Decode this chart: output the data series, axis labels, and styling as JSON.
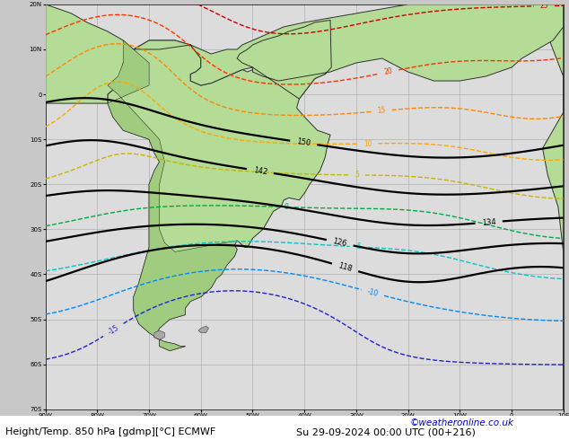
{
  "title_left": "Height/Temp. 850 hPa [gdmp][°C] ECMWF",
  "title_right": "Su 29-09-2024 00:00 UTC (00+216)",
  "watermark": "©weatheronline.co.uk",
  "bg_color": "#c8c8c8",
  "land_color": "#b4dc96",
  "land_color2": "#a0cc80",
  "ocean_color": "#dcdcdc",
  "gray_land": "#a8a8a8",
  "grid_color": "#b0b0b0",
  "figsize": [
    6.34,
    4.9
  ],
  "dpi": 100,
  "black_contour_values": [
    118,
    126,
    134,
    142,
    150
  ],
  "font_size_title": 8.0,
  "font_size_watermark": 7.5,
  "contour_lw_black": 1.6,
  "contour_lw_temp": 1.0,
  "xlim": [
    -90,
    10
  ],
  "ylim": [
    -70,
    20
  ],
  "xticks": [
    -90,
    -80,
    -70,
    -60,
    -50,
    -40,
    -30,
    -20,
    -10,
    0,
    10
  ],
  "yticks": [
    -70,
    -60,
    -50,
    -40,
    -30,
    -20,
    -10,
    0,
    10,
    20
  ],
  "xlabel_vals": [
    -90,
    -80,
    -70,
    -60,
    -50,
    -40,
    -30,
    -20,
    -10,
    0,
    10
  ],
  "ylabel_vals": [
    -70,
    -60,
    -50,
    -40,
    -30,
    -20,
    -10,
    0,
    10,
    20
  ]
}
